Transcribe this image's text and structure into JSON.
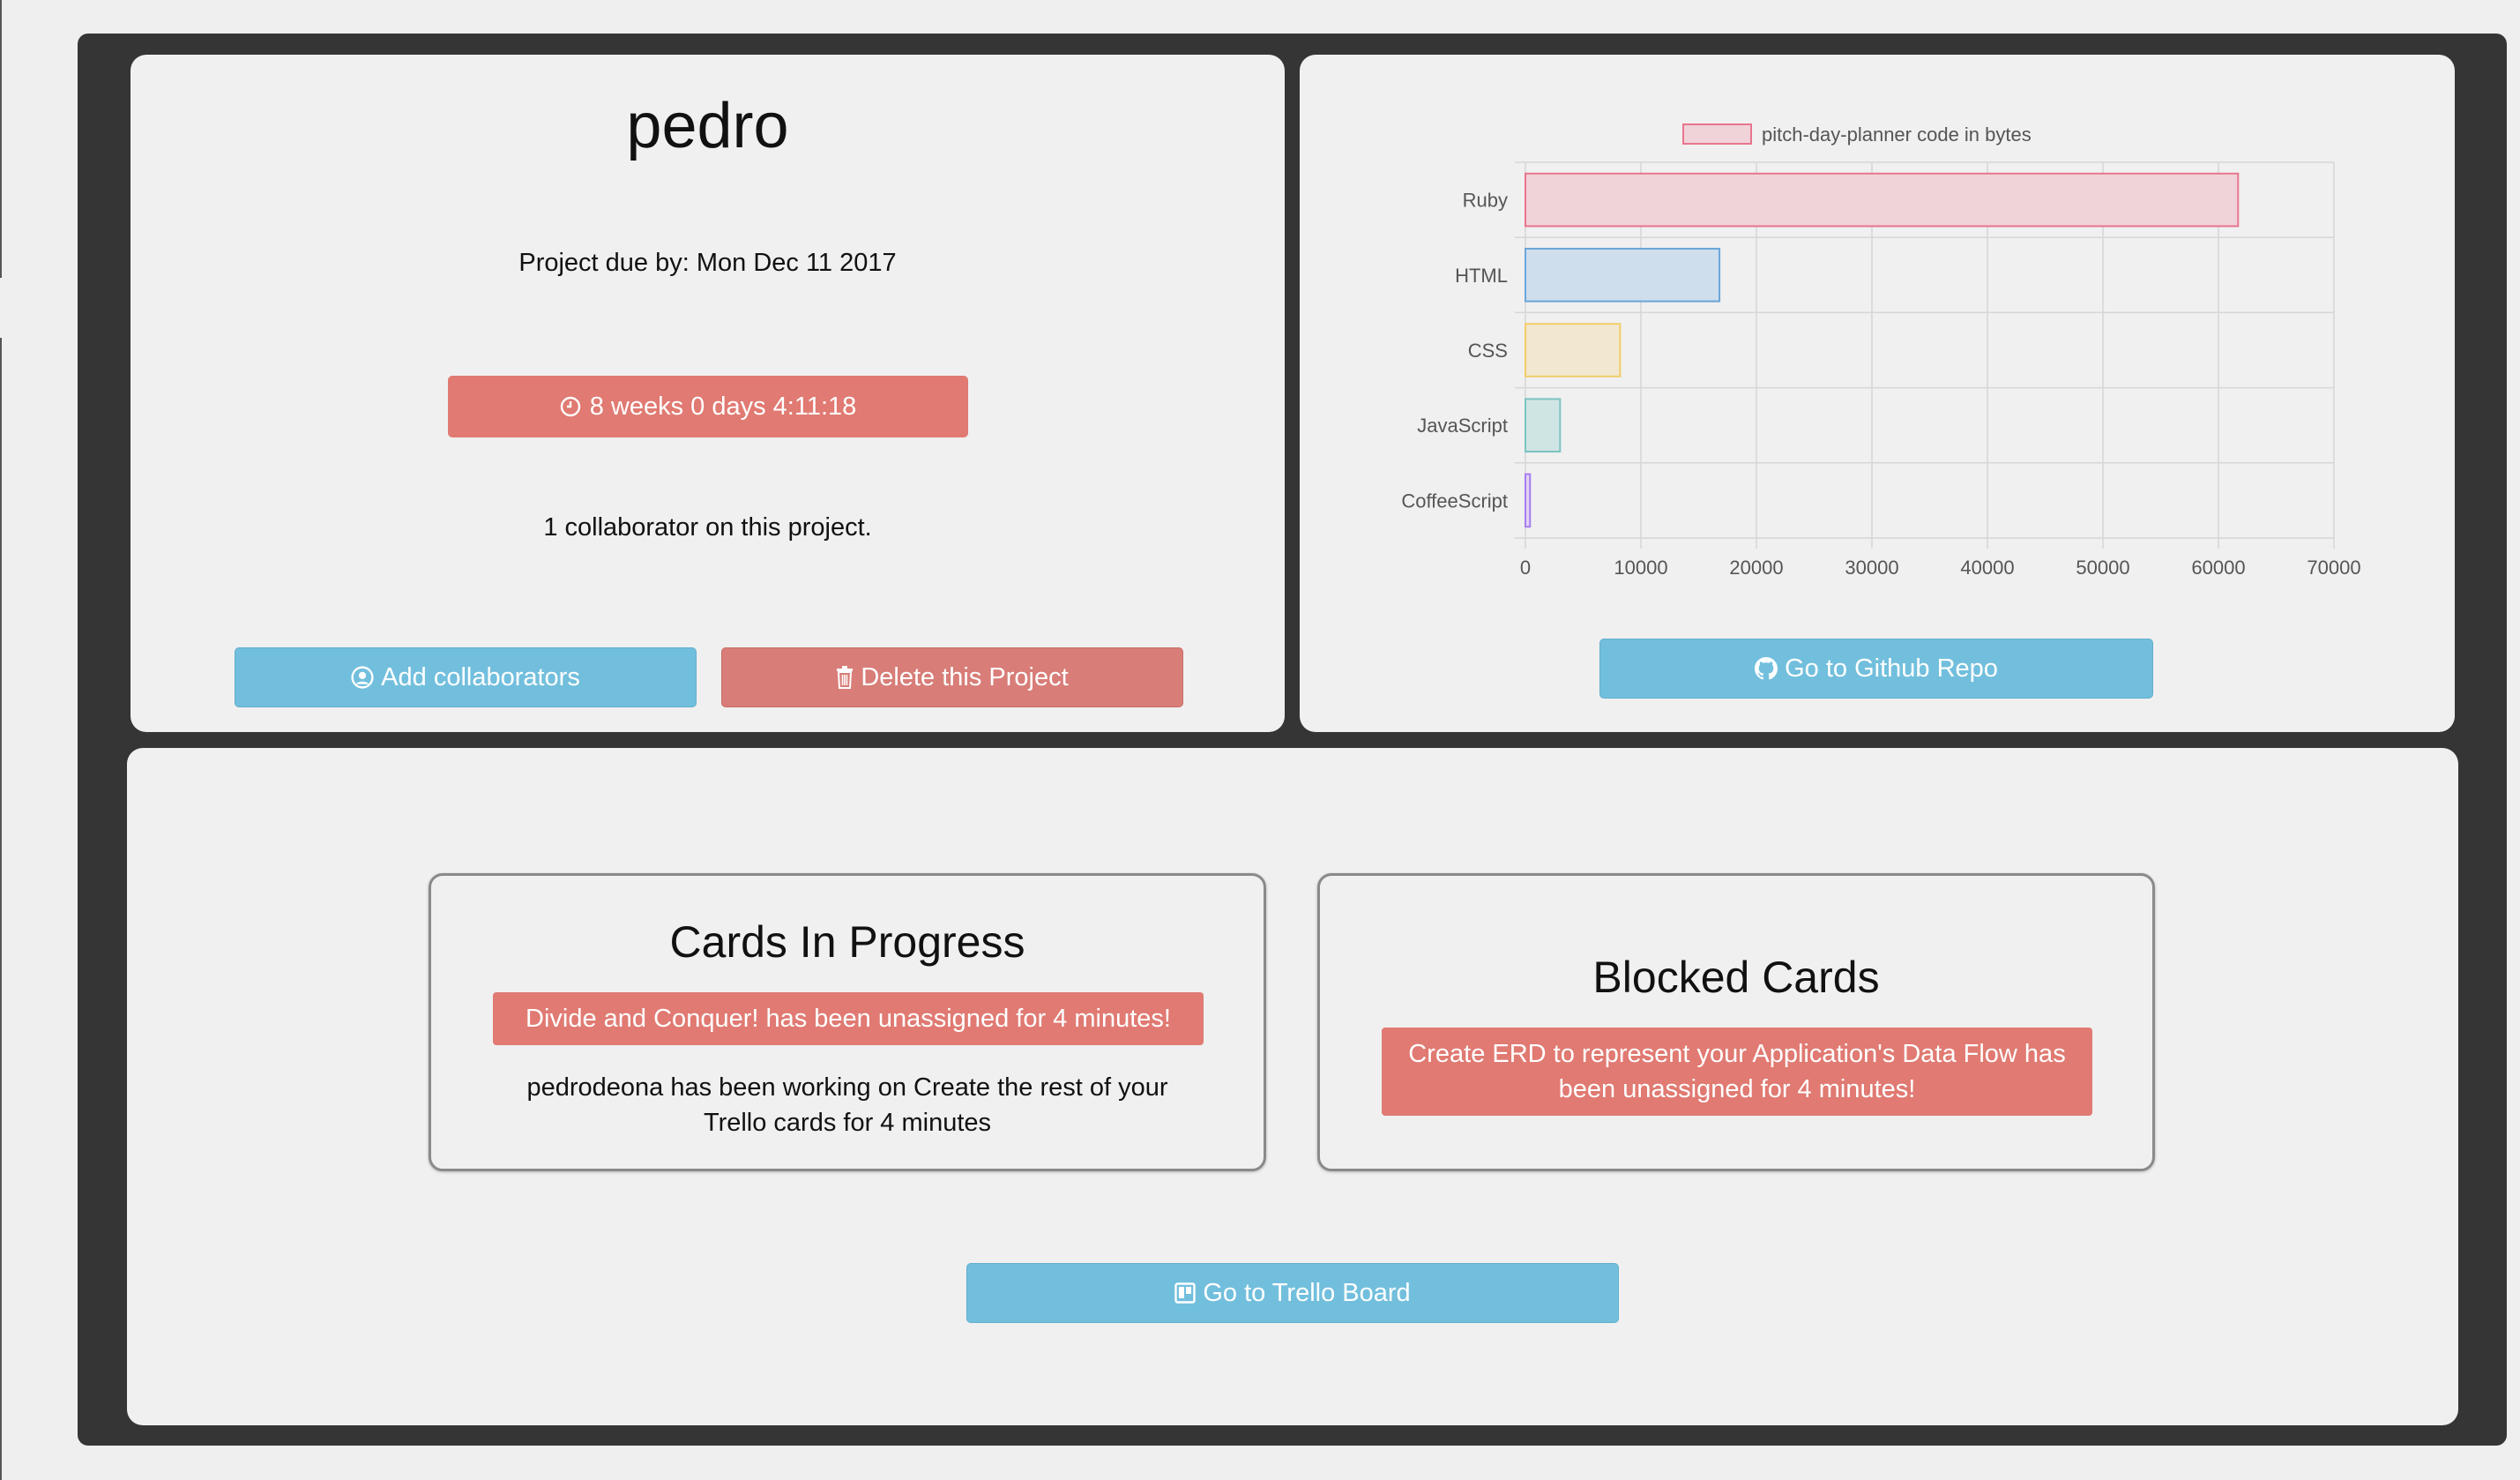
{
  "project": {
    "title": "pedro",
    "due_text": "Project due by: Mon Dec 11 2017",
    "countdown": "8 weeks 0 days 4:11:18",
    "collaborators_text": "1 collaborator on this project.",
    "add_collaborators_label": "Add collaborators",
    "delete_label": "Delete this Project"
  },
  "repo": {
    "github_label": "Go to Github Repo"
  },
  "chart_data": {
    "type": "bar",
    "orientation": "horizontal",
    "categories": [
      "Ruby",
      "HTML",
      "CSS",
      "JavaScript",
      "CoffeeScript"
    ],
    "series": [
      {
        "name": "pitch-day-planner code in bytes",
        "values": [
          61700,
          16800,
          8200,
          3000,
          400
        ]
      }
    ],
    "colors": [
      {
        "fill": "#f0d3d9",
        "stroke": "#e8758e"
      },
      {
        "fill": "#cfdeed",
        "stroke": "#6aa6d8"
      },
      {
        "fill": "#f2e7cf",
        "stroke": "#f2cd6a"
      },
      {
        "fill": "#cfe5e4",
        "stroke": "#7cc4c2"
      },
      {
        "fill": "#e2d3f2",
        "stroke": "#a77df0"
      }
    ],
    "xlim": [
      0,
      70000
    ],
    "xticks": [
      "0",
      "10000",
      "20000",
      "30000",
      "40000",
      "50000",
      "60000",
      "70000"
    ],
    "grid": true,
    "legend": "top"
  },
  "cards": {
    "in_progress": {
      "title": "Cards In Progress",
      "alert": "Divide and Conquer! has been unassigned for 4 minutes!",
      "working_text": "pedrodeona has been working on Create the rest of your Trello cards for 4 minutes"
    },
    "blocked": {
      "title": "Blocked Cards",
      "alert": "Create ERD to represent your Application's Data Flow has been unassigned for 4 minutes!"
    },
    "trello_label": "Go to Trello Board"
  },
  "icons": {
    "timer": "clock-icon",
    "add": "user-circle-icon",
    "delete": "trash-icon",
    "github": "github-icon",
    "trello": "trello-icon"
  }
}
